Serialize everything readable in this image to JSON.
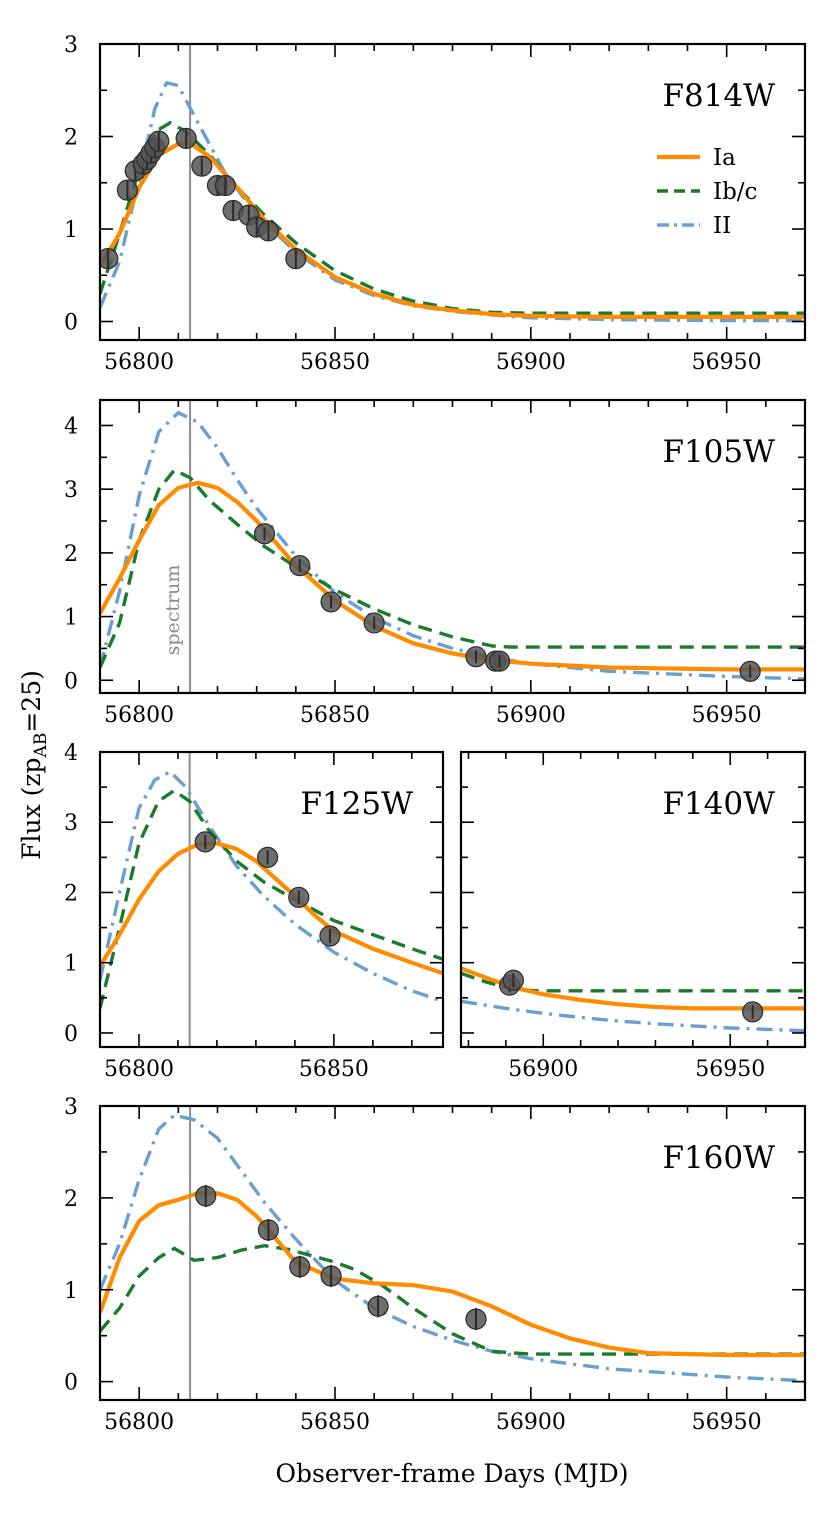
{
  "figure": {
    "xlabel": "Observer-frame Days (MJD)",
    "ylabel_main": "Flux (zp",
    "ylabel_sub": "AB",
    "ylabel_end": "=25)",
    "spectrum_label": "spectrum",
    "spectrum_mjd": 56813
  },
  "colors": {
    "Ia": "#ff8c00",
    "Ibc": "#1a7a2e",
    "II": "#6a9fcf",
    "points": "#555555"
  },
  "legend": [
    {
      "key": "Ia",
      "label": "Ia",
      "style": "solid"
    },
    {
      "key": "Ibc",
      "label": "Ib/c",
      "style": "dashed"
    },
    {
      "key": "II",
      "label": "II",
      "style": "dashdot"
    }
  ],
  "chart_data": [
    {
      "type": "line",
      "title": "F814W",
      "xlim": [
        56790,
        56970
      ],
      "ylim": [
        -0.2,
        3
      ],
      "xticks": [
        56800,
        56850,
        56900,
        56950
      ],
      "yticks": [
        0,
        1,
        2,
        3
      ],
      "show_legend": true,
      "series": [
        {
          "name": "Ia",
          "x": [
            56790,
            56795,
            56800,
            56805,
            56810,
            56813,
            56818,
            56825,
            56832,
            56840,
            56850,
            56860,
            56870,
            56880,
            56890,
            56900,
            56920,
            56950,
            56970
          ],
          "y": [
            0.6,
            0.95,
            1.45,
            1.8,
            1.92,
            1.93,
            1.78,
            1.45,
            1.1,
            0.78,
            0.48,
            0.3,
            0.18,
            0.12,
            0.08,
            0.06,
            0.05,
            0.05,
            0.05
          ]
        },
        {
          "name": "Ib/c",
          "x": [
            56790,
            56795,
            56800,
            56804,
            56808,
            56812,
            56818,
            56825,
            56832,
            56840,
            56850,
            56860,
            56870,
            56880,
            56890,
            56900,
            56950,
            56970
          ],
          "y": [
            0.3,
            0.95,
            1.65,
            2.05,
            2.15,
            2.05,
            1.8,
            1.45,
            1.15,
            0.85,
            0.55,
            0.35,
            0.22,
            0.14,
            0.1,
            0.09,
            0.09,
            0.09
          ]
        },
        {
          "name": "II",
          "x": [
            56790,
            56795,
            56800,
            56804,
            56807,
            56810,
            56815,
            56822,
            56830,
            56840,
            56850,
            56860,
            56870,
            56880,
            56890,
            56900,
            56920,
            56950,
            56970
          ],
          "y": [
            0.15,
            0.65,
            1.55,
            2.3,
            2.58,
            2.55,
            2.15,
            1.6,
            1.15,
            0.75,
            0.45,
            0.28,
            0.17,
            0.11,
            0.07,
            0.04,
            0.02,
            0.01,
            0.01
          ]
        }
      ],
      "points": {
        "x": [
          56792,
          56797,
          56799,
          56801,
          56802,
          56803,
          56804,
          56805,
          56812,
          56816,
          56820,
          56822,
          56824,
          56828,
          56830,
          56833,
          56840
        ],
        "y": [
          0.68,
          1.42,
          1.63,
          1.7,
          1.75,
          1.82,
          1.88,
          1.95,
          1.98,
          1.68,
          1.47,
          1.47,
          1.2,
          1.15,
          1.02,
          0.98,
          0.68
        ],
        "err": [
          0.1,
          0.1,
          0.1,
          0.1,
          0.1,
          0.1,
          0.1,
          0.1,
          0.1,
          0.1,
          0.1,
          0.1,
          0.1,
          0.1,
          0.1,
          0.1,
          0.1
        ]
      }
    },
    {
      "type": "line",
      "title": "F105W",
      "xlim": [
        56790,
        56970
      ],
      "ylim": [
        -0.2,
        4.4
      ],
      "xticks": [
        56800,
        56850,
        56900,
        56950
      ],
      "yticks": [
        0,
        1,
        2,
        3,
        4
      ],
      "show_legend": false,
      "series": [
        {
          "name": "Ia",
          "x": [
            56790,
            56795,
            56800,
            56805,
            56810,
            56815,
            56820,
            56825,
            56830,
            56835,
            56840,
            56850,
            56860,
            56870,
            56880,
            56890,
            56900,
            56920,
            56950,
            56970
          ],
          "y": [
            1.05,
            1.6,
            2.2,
            2.75,
            3.02,
            3.1,
            3.02,
            2.8,
            2.5,
            2.15,
            1.8,
            1.25,
            0.85,
            0.58,
            0.42,
            0.32,
            0.26,
            0.2,
            0.17,
            0.17
          ]
        },
        {
          "name": "Ib/c",
          "x": [
            56790,
            56795,
            56800,
            56805,
            56809,
            56813,
            56818,
            56825,
            56832,
            56840,
            56850,
            56860,
            56870,
            56880,
            56890,
            56895,
            56920,
            56950,
            56970
          ],
          "y": [
            0.2,
            0.9,
            2.2,
            3.0,
            3.3,
            3.18,
            2.82,
            2.45,
            2.1,
            1.78,
            1.42,
            1.12,
            0.87,
            0.68,
            0.54,
            0.52,
            0.52,
            0.52,
            0.52
          ]
        },
        {
          "name": "II",
          "x": [
            56790,
            56795,
            56800,
            56805,
            56810,
            56815,
            56820,
            56825,
            56830,
            56840,
            56850,
            56860,
            56870,
            56880,
            56890,
            56900,
            56920,
            56950,
            56970
          ],
          "y": [
            0.2,
            1.4,
            2.9,
            3.9,
            4.2,
            4.05,
            3.65,
            3.15,
            2.7,
            1.95,
            1.38,
            0.98,
            0.7,
            0.5,
            0.36,
            0.26,
            0.14,
            0.06,
            0.02
          ]
        }
      ],
      "points": {
        "x": [
          56832,
          56841,
          56849,
          56860,
          56886,
          56891,
          56892,
          56956
        ],
        "y": [
          2.3,
          1.8,
          1.23,
          0.9,
          0.37,
          0.3,
          0.3,
          0.14
        ],
        "err": [
          0.1,
          0.1,
          0.1,
          0.1,
          0.1,
          0.1,
          0.1,
          0.1
        ]
      }
    },
    {
      "type": "line",
      "title": "F125W",
      "xlim": [
        56790,
        56878
      ],
      "ylim": [
        -0.2,
        4
      ],
      "xticks": [
        56800,
        56850
      ],
      "yticks": [
        0,
        1,
        2,
        3,
        4
      ],
      "show_legend": false,
      "series": [
        {
          "name": "Ia",
          "x": [
            56790,
            56795,
            56800,
            56805,
            56810,
            56815,
            56820,
            56825,
            56830,
            56835,
            56840,
            56845,
            56850,
            56860,
            56870,
            56878
          ],
          "y": [
            0.95,
            1.4,
            1.9,
            2.3,
            2.55,
            2.68,
            2.7,
            2.62,
            2.45,
            2.2,
            1.95,
            1.68,
            1.45,
            1.2,
            1.0,
            0.85
          ]
        },
        {
          "name": "Ib/c",
          "x": [
            56790,
            56795,
            56800,
            56805,
            56809,
            56813,
            56818,
            56825,
            56832,
            56840,
            56850,
            56860,
            56870,
            56878
          ],
          "y": [
            0.35,
            1.5,
            2.7,
            3.3,
            3.45,
            3.3,
            2.88,
            2.45,
            2.15,
            1.9,
            1.6,
            1.4,
            1.2,
            1.05
          ]
        },
        {
          "name": "II",
          "x": [
            56790,
            56795,
            56800,
            56804,
            56808,
            56812,
            56818,
            56825,
            56832,
            56840,
            56850,
            56860,
            56870,
            56878
          ],
          "y": [
            0.75,
            2.0,
            3.2,
            3.6,
            3.72,
            3.5,
            2.95,
            2.38,
            1.95,
            1.55,
            1.15,
            0.85,
            0.6,
            0.45
          ]
        }
      ],
      "points": {
        "x": [
          56817,
          56833,
          56841,
          56849
        ],
        "y": [
          2.72,
          2.5,
          1.93,
          1.38
        ],
        "err": [
          0.1,
          0.1,
          0.1,
          0.1
        ]
      }
    },
    {
      "type": "line",
      "title": "F140W",
      "xlim": [
        56878,
        56970
      ],
      "ylim": [
        -0.2,
        4
      ],
      "xticks": [
        56900,
        56950
      ],
      "yticks": [
        0,
        1,
        2,
        3,
        4
      ],
      "show_legend": false,
      "series": [
        {
          "name": "Ia",
          "x": [
            56878,
            56885,
            56892,
            56900,
            56910,
            56920,
            56930,
            56940,
            56950,
            56960,
            56970
          ],
          "y": [
            0.92,
            0.78,
            0.65,
            0.55,
            0.47,
            0.41,
            0.37,
            0.35,
            0.35,
            0.35,
            0.35
          ]
        },
        {
          "name": "Ib/c",
          "x": [
            56878,
            56885,
            56892,
            56898,
            56905,
            56930,
            56950,
            56970
          ],
          "y": [
            0.85,
            0.72,
            0.63,
            0.6,
            0.6,
            0.6,
            0.6,
            0.6
          ]
        },
        {
          "name": "II",
          "x": [
            56878,
            56890,
            56900,
            56910,
            56920,
            56930,
            56940,
            56950,
            56960,
            56970
          ],
          "y": [
            0.45,
            0.35,
            0.28,
            0.22,
            0.17,
            0.13,
            0.1,
            0.07,
            0.05,
            0.03
          ]
        }
      ],
      "points": {
        "x": [
          56891,
          56892,
          56956
        ],
        "y": [
          0.68,
          0.75,
          0.3
        ],
        "err": [
          0.1,
          0.1,
          0.1
        ]
      }
    },
    {
      "type": "line",
      "title": "F160W",
      "xlim": [
        56790,
        56970
      ],
      "ylim": [
        -0.2,
        3
      ],
      "xticks": [
        56800,
        56850,
        56900,
        56950
      ],
      "yticks": [
        0,
        1,
        2,
        3
      ],
      "show_legend": false,
      "series": [
        {
          "name": "Ia",
          "x": [
            56790,
            56795,
            56800,
            56805,
            56810,
            56815,
            56820,
            56825,
            56830,
            56835,
            56840,
            56850,
            56860,
            56870,
            56880,
            56890,
            56900,
            56910,
            56920,
            56930,
            56950,
            56970
          ],
          "y": [
            0.75,
            1.35,
            1.75,
            1.92,
            1.98,
            2.05,
            2.05,
            1.98,
            1.8,
            1.55,
            1.3,
            1.12,
            1.07,
            1.05,
            0.98,
            0.82,
            0.62,
            0.47,
            0.37,
            0.31,
            0.29,
            0.29
          ]
        },
        {
          "name": "Ib/c",
          "x": [
            56790,
            56795,
            56800,
            56805,
            56809,
            56814,
            56820,
            56826,
            56832,
            56838,
            56845,
            56850,
            56855,
            56862,
            56870,
            56880,
            56890,
            56900,
            56950,
            56970
          ],
          "y": [
            0.55,
            0.8,
            1.15,
            1.35,
            1.45,
            1.32,
            1.35,
            1.43,
            1.48,
            1.44,
            1.36,
            1.3,
            1.22,
            1.05,
            0.8,
            0.52,
            0.33,
            0.3,
            0.3,
            0.3
          ]
        },
        {
          "name": "II",
          "x": [
            56790,
            56795,
            56800,
            56805,
            56809,
            56814,
            56820,
            56826,
            56832,
            56840,
            56850,
            56860,
            56870,
            56880,
            56890,
            56900,
            56920,
            56950,
            56970
          ],
          "y": [
            1.0,
            1.5,
            2.2,
            2.75,
            2.9,
            2.85,
            2.65,
            2.3,
            1.95,
            1.55,
            1.1,
            0.8,
            0.6,
            0.45,
            0.33,
            0.25,
            0.14,
            0.05,
            0.01
          ]
        }
      ],
      "points": {
        "x": [
          56817,
          56833,
          56841,
          56849,
          56861,
          56886
        ],
        "y": [
          2.02,
          1.65,
          1.25,
          1.15,
          0.82,
          0.68
        ],
        "err": [
          0.12,
          0.12,
          0.12,
          0.12,
          0.12,
          0.12
        ]
      }
    }
  ]
}
